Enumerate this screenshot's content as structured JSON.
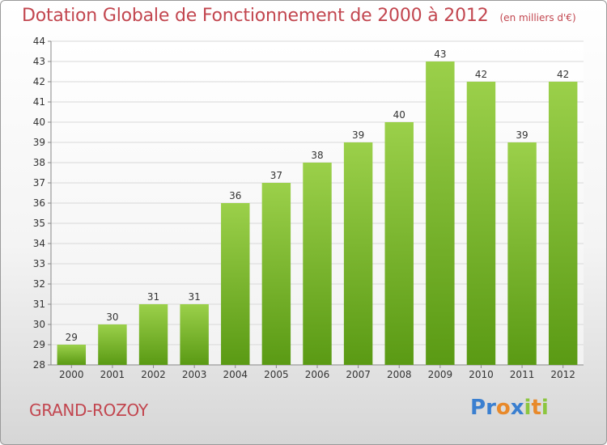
{
  "header": {
    "title": "Dotation Globale de Fonctionnement de 2000 à 2012",
    "subtitle": "(en milliers d'€)"
  },
  "footer": {
    "commune": "GRAND-ROZOY",
    "logo_letters": [
      "P",
      "r",
      "o",
      "x",
      "i",
      "t",
      "i"
    ]
  },
  "colors": {
    "bar_top": "#9bd04a",
    "bar_bottom": "#5a9a14",
    "title": "#c2464f",
    "logo": [
      "#3a7fd0",
      "#3a7fd0",
      "#e8892a",
      "#3a7fd0",
      "#8cc63f",
      "#e8892a",
      "#8cc63f"
    ]
  },
  "chart_data": {
    "type": "bar",
    "categories": [
      "2000",
      "2001",
      "2002",
      "2003",
      "2004",
      "2005",
      "2006",
      "2007",
      "2008",
      "2009",
      "2010",
      "2011",
      "2012"
    ],
    "values": [
      29,
      30,
      31,
      31,
      36,
      37,
      38,
      39,
      40,
      43,
      42,
      39,
      42
    ],
    "ylim": [
      28,
      44
    ],
    "yticks": [
      28,
      29,
      30,
      31,
      32,
      33,
      34,
      35,
      36,
      37,
      38,
      39,
      40,
      41,
      42,
      43,
      44
    ],
    "grid": true,
    "legend": false
  }
}
